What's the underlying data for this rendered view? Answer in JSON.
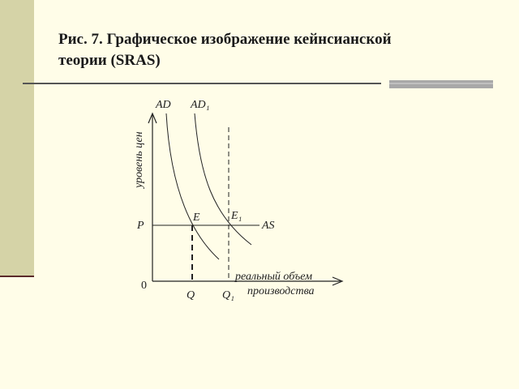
{
  "header": {
    "title_lines": [
      "Рис. 7. Графическое изображение кейнсианской",
      "теории (SRAS)"
    ]
  },
  "diagram": {
    "y_axis_label": "уровень цен",
    "x_axis_label_lines": [
      "реальный объем",
      "производства"
    ],
    "origin": "0",
    "price_label": "P",
    "supply_label": "AS",
    "demand_labels": [
      "AD",
      "AD₁"
    ],
    "equilibrium_labels": [
      "E",
      "E₁"
    ],
    "quantity_labels": [
      "Q",
      "Q₁"
    ]
  }
}
